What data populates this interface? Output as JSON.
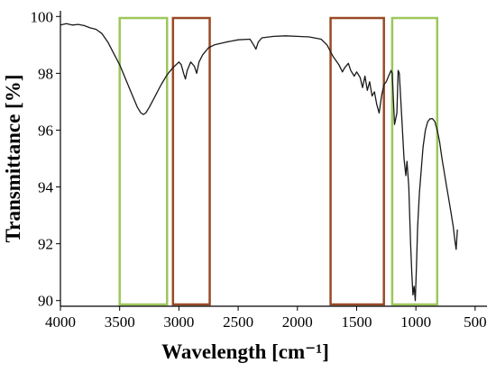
{
  "chart_data": {
    "type": "line",
    "title": "",
    "xlabel": "Wavelength [cm⁻¹]",
    "ylabel": "Transmittance [%]",
    "xlim": [
      4000,
      400
    ],
    "ylim": [
      89.8,
      100.2
    ],
    "x_axis_reversed": true,
    "grid": false,
    "xticks": [
      4000,
      3500,
      3000,
      2500,
      2000,
      1500,
      1000,
      500
    ],
    "yticks": [
      90,
      92,
      94,
      96,
      98,
      100
    ],
    "xtick_labels": [
      "4000",
      "3500",
      "3000",
      "2500",
      "2000",
      "1500",
      "1000",
      "500"
    ],
    "ytick_labels": [
      "90",
      "92",
      "94",
      "96",
      "98",
      "100"
    ],
    "series": [
      {
        "color": "#1a1a1a",
        "points": [
          [
            4000,
            99.7
          ],
          [
            3950,
            99.75
          ],
          [
            3900,
            99.7
          ],
          [
            3850,
            99.72
          ],
          [
            3800,
            99.68
          ],
          [
            3750,
            99.6
          ],
          [
            3700,
            99.55
          ],
          [
            3650,
            99.4
          ],
          [
            3600,
            99.1
          ],
          [
            3550,
            98.7
          ],
          [
            3500,
            98.3
          ],
          [
            3450,
            97.8
          ],
          [
            3400,
            97.3
          ],
          [
            3350,
            96.8
          ],
          [
            3320,
            96.6
          ],
          [
            3300,
            96.55
          ],
          [
            3280,
            96.6
          ],
          [
            3250,
            96.8
          ],
          [
            3200,
            97.2
          ],
          [
            3150,
            97.6
          ],
          [
            3100,
            97.95
          ],
          [
            3050,
            98.2
          ],
          [
            3000,
            98.4
          ],
          [
            2980,
            98.3
          ],
          [
            2960,
            98.0
          ],
          [
            2945,
            97.8
          ],
          [
            2930,
            98.1
          ],
          [
            2900,
            98.4
          ],
          [
            2870,
            98.25
          ],
          [
            2850,
            98.0
          ],
          [
            2830,
            98.4
          ],
          [
            2800,
            98.65
          ],
          [
            2750,
            98.9
          ],
          [
            2700,
            99.0
          ],
          [
            2600,
            99.1
          ],
          [
            2500,
            99.18
          ],
          [
            2400,
            99.2
          ],
          [
            2370,
            99.0
          ],
          [
            2350,
            98.85
          ],
          [
            2330,
            99.1
          ],
          [
            2300,
            99.25
          ],
          [
            2200,
            99.3
          ],
          [
            2100,
            99.32
          ],
          [
            2000,
            99.3
          ],
          [
            1900,
            99.28
          ],
          [
            1800,
            99.2
          ],
          [
            1750,
            99.0
          ],
          [
            1700,
            98.6
          ],
          [
            1650,
            98.3
          ],
          [
            1620,
            98.05
          ],
          [
            1600,
            98.2
          ],
          [
            1570,
            98.35
          ],
          [
            1550,
            98.1
          ],
          [
            1520,
            97.9
          ],
          [
            1500,
            98.05
          ],
          [
            1470,
            97.85
          ],
          [
            1450,
            97.5
          ],
          [
            1430,
            97.9
          ],
          [
            1410,
            97.4
          ],
          [
            1390,
            97.7
          ],
          [
            1370,
            97.2
          ],
          [
            1350,
            97.35
          ],
          [
            1330,
            96.9
          ],
          [
            1310,
            96.6
          ],
          [
            1290,
            97.2
          ],
          [
            1270,
            97.6
          ],
          [
            1250,
            97.7
          ],
          [
            1230,
            97.9
          ],
          [
            1210,
            98.1
          ],
          [
            1200,
            98.0
          ],
          [
            1180,
            96.2
          ],
          [
            1160,
            96.6
          ],
          [
            1150,
            98.1
          ],
          [
            1140,
            98.0
          ],
          [
            1120,
            96.5
          ],
          [
            1100,
            95.0
          ],
          [
            1085,
            94.4
          ],
          [
            1075,
            94.9
          ],
          [
            1060,
            94.0
          ],
          [
            1045,
            92.0
          ],
          [
            1035,
            91.0
          ],
          [
            1025,
            90.2
          ],
          [
            1015,
            90.5
          ],
          [
            1005,
            90.0
          ],
          [
            995,
            91.2
          ],
          [
            985,
            92.6
          ],
          [
            970,
            93.8
          ],
          [
            955,
            94.6
          ],
          [
            940,
            95.4
          ],
          [
            920,
            96.0
          ],
          [
            900,
            96.3
          ],
          [
            880,
            96.4
          ],
          [
            860,
            96.4
          ],
          [
            840,
            96.3
          ],
          [
            820,
            96.0
          ],
          [
            800,
            95.6
          ],
          [
            780,
            95.0
          ],
          [
            760,
            94.5
          ],
          [
            740,
            94.0
          ],
          [
            720,
            93.5
          ],
          [
            700,
            93.0
          ],
          [
            685,
            92.6
          ],
          [
            670,
            92.1
          ],
          [
            660,
            91.8
          ],
          [
            650,
            92.5
          ]
        ]
      }
    ],
    "highlight_regions": [
      {
        "x_range": [
          3500,
          3100
        ],
        "color": "#9dc75a"
      },
      {
        "x_range": [
          3050,
          2740
        ],
        "color": "#9a4a25"
      },
      {
        "x_range": [
          1720,
          1270
        ],
        "color": "#9a4a25"
      },
      {
        "x_range": [
          1200,
          820
        ],
        "color": "#9dc75a"
      }
    ]
  }
}
